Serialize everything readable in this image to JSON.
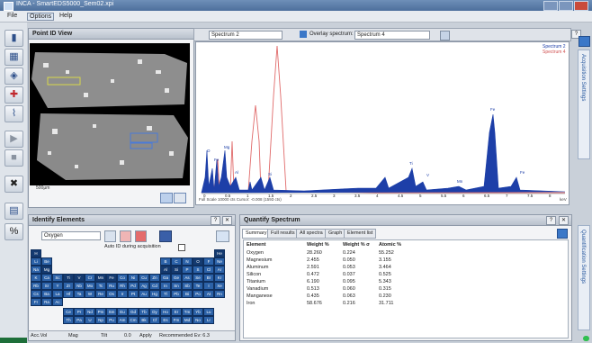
{
  "window": {
    "title": "INCA  -  SmartEDS5000_Sem02.xpi"
  },
  "menu": [
    "File",
    "Options",
    "Help"
  ],
  "point_view": {
    "title": "Point ID View",
    "scale_label": "500µm"
  },
  "spectrum_toolbar": {
    "spectrum_select": "Spectrum 2",
    "overlay_label": "Overlay spectrum:",
    "overlay_select": "Spectrum 4"
  },
  "spectrum": {
    "legend": [
      "Spectrum 2",
      "Spectrum 4"
    ],
    "status": "Full Scale 10000 cts Cursor: -0.008  (1593 cts)",
    "unit": "keV",
    "x_ticks": [
      "0",
      "0.5",
      "1",
      "1.5",
      "2",
      "2.5",
      "3",
      "3.5",
      "4",
      "4.5",
      "5",
      "5.5",
      "6",
      "6.5",
      "7",
      "7.5",
      "8"
    ],
    "peak_labels": [
      "O",
      "Fe",
      "Mg",
      "Al",
      "Si",
      "Ti",
      "V",
      "Mn",
      "Fe",
      "Fe"
    ]
  },
  "identify": {
    "title": "Identify Elements",
    "element_select": "Oxygen",
    "auto_id": "Auto ID during acquisition",
    "bottom": [
      "Acc.Vol",
      "Mag",
      "Tilt",
      "0.0",
      "Apply",
      "Recommended Ev: 6.3"
    ]
  },
  "periodic_table": {
    "row1": [
      "H",
      "He"
    ],
    "row2": [
      "Li",
      "Be",
      "B",
      "C",
      "N",
      "O",
      "F",
      "Ne"
    ],
    "row3": [
      "Na",
      "Mg",
      "Al",
      "Si",
      "P",
      "S",
      "Cl",
      "Ar"
    ],
    "row4": [
      "K",
      "Ca",
      "Sc",
      "Ti",
      "V",
      "Cr",
      "Mn",
      "Fe",
      "Co",
      "Ni",
      "Cu",
      "Zn",
      "Ga",
      "Ge",
      "As",
      "Se",
      "Br",
      "Kr"
    ],
    "row5": [
      "Rb",
      "Sr",
      "Y",
      "Zr",
      "Nb",
      "Mo",
      "Tc",
      "Ru",
      "Rh",
      "Pd",
      "Ag",
      "Cd",
      "In",
      "Sn",
      "Sb",
      "Te",
      "I",
      "Xe"
    ],
    "row6": [
      "Cs",
      "Ba",
      "La",
      "Hf",
      "Ta",
      "W",
      "Re",
      "Os",
      "Ir",
      "Pt",
      "Au",
      "Hg",
      "Tl",
      "Pb",
      "Bi",
      "Po",
      "At",
      "Rn"
    ],
    "row7": [
      "Fr",
      "Ra",
      "Ac"
    ],
    "lan": [
      "Ce",
      "Pr",
      "Nd",
      "Pm",
      "Sm",
      "Eu",
      "Gd",
      "Tb",
      "Dy",
      "Ho",
      "Er",
      "Tm",
      "Yb",
      "Lu"
    ],
    "act": [
      "Th",
      "Pa",
      "U",
      "Np",
      "Pu",
      "Am",
      "Cm",
      "Bk",
      "Cf",
      "Es",
      "Fm",
      "Md",
      "No",
      "Lr"
    ]
  },
  "quant": {
    "title": "Quantify Spectrum",
    "tabs": [
      "Summary",
      "Full results",
      "All spectra",
      "Graph",
      "Element list"
    ],
    "headers": [
      "Element",
      "Weight %",
      "Weight % σ",
      "Atomic %"
    ],
    "rows": [
      [
        "Oxygen",
        "28.260",
        "0.224",
        "55.252"
      ],
      [
        "Magnesium",
        "2.455",
        "0.050",
        "3.155"
      ],
      [
        "Aluminum",
        "2.591",
        "0.053",
        "3.464"
      ],
      [
        "Silicon",
        "0.472",
        "0.037",
        "0.525"
      ],
      [
        "Titanium",
        "6.190",
        "0.095",
        "5.343"
      ],
      [
        "Vanadium",
        "0.513",
        "0.060",
        "0.315"
      ],
      [
        "Manganese",
        "0.435",
        "0.063",
        "0.230"
      ],
      [
        "Iron",
        "58.676",
        "0.216",
        "31.711"
      ]
    ]
  },
  "side_tabs": [
    "Acquisition Settings",
    "Quantification Settings"
  ]
}
